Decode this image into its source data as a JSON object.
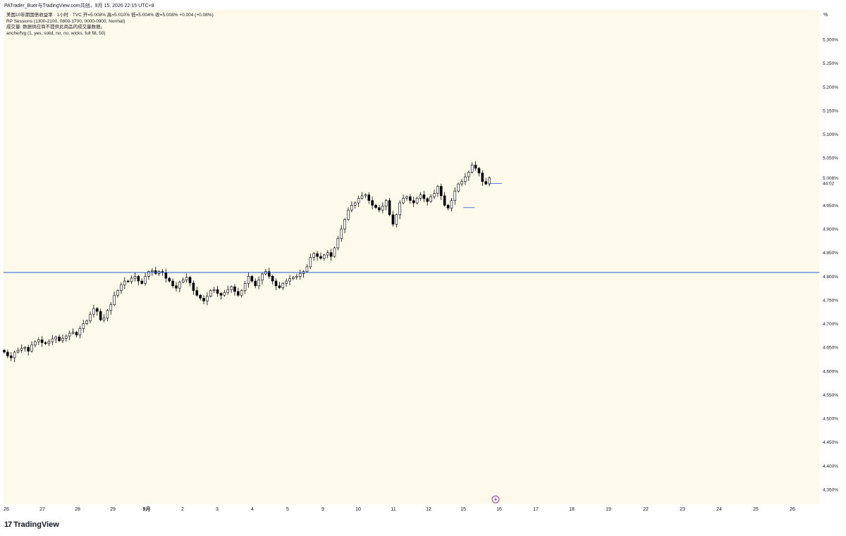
{
  "header": {
    "text": "PATrader_Buer与TradingView.com共创，9月 15, 2026 22:15 UTC+8"
  },
  "legend": {
    "line1": "美国10年期国债收益率 · 1小时 · TVC  开=5.008%  高=5.010%  低=5.004%  收=5.008%  +0.004 (+0.08%)",
    "line2": "RP Sessions (1300-2100, 0800-1700, 0000-0900, Normal)",
    "line3": "成交量: 数据供应商不提供此商品的成交量数据。",
    "line4": "anche/fvg (1, yes, solid, no, no, wicks, full fill, 50)"
  },
  "axis_unit": "%",
  "current_price": {
    "label": "5.008%",
    "countdown": "44:02",
    "value": 5.008
  },
  "footer": {
    "brand": "TradingView",
    "logo_mark": "17"
  },
  "colors": {
    "background": "#fefaeb",
    "candle_up": "#ffffff",
    "candle_down": "#000000",
    "hline": "#2a5bd7",
    "volume_up": "#089981",
    "lightning": "#9c27b0"
  },
  "chart_data": {
    "type": "candlestick",
    "title": "美国10年期国债收益率 · 1小时 · TVC",
    "ylim": [
      4.32,
      5.36
    ],
    "y_ticks": [
      "5.300%",
      "5.250%",
      "5.200%",
      "5.150%",
      "5.100%",
      "5.050%",
      "5.008%",
      "4.950%",
      "4.900%",
      "4.850%",
      "4.800%",
      "4.750%",
      "4.700%",
      "4.650%",
      "4.600%",
      "4.550%",
      "4.500%",
      "4.450%",
      "4.400%",
      "4.350%"
    ],
    "y_tick_values": [
      5.3,
      5.25,
      5.2,
      5.15,
      5.1,
      5.05,
      5.008,
      4.95,
      4.9,
      4.85,
      4.8,
      4.75,
      4.7,
      4.65,
      4.6,
      4.55,
      4.5,
      4.45,
      4.4,
      4.35
    ],
    "x_labels": [
      "26",
      "27",
      "28",
      "29",
      "9月",
      "2",
      "3",
      "4",
      "5",
      "9",
      "10",
      "11",
      "12",
      "15",
      "16",
      "17",
      "18",
      "19",
      "22",
      "23",
      "24",
      "25",
      "26"
    ],
    "horizontal_line": 4.808,
    "small_line": 4.945,
    "series": [
      {
        "name": "close",
        "values": [
          4.64,
          4.632,
          4.628,
          4.64,
          4.644,
          4.648,
          4.65,
          4.642,
          4.655,
          4.662,
          4.666,
          4.66,
          4.658,
          4.662,
          4.668,
          4.672,
          4.664,
          4.669,
          4.674,
          4.68,
          4.682,
          4.676,
          4.69,
          4.7,
          4.706,
          4.72,
          4.732,
          4.726,
          4.708,
          4.712,
          4.728,
          4.74,
          4.76,
          4.77,
          4.782,
          4.79,
          4.789,
          4.796,
          4.8,
          4.79,
          4.785,
          4.8,
          4.81,
          4.812,
          4.806,
          4.81,
          4.808,
          4.796,
          4.79,
          4.78,
          4.775,
          4.788,
          4.792,
          4.798,
          4.786,
          4.77,
          4.76,
          4.754,
          4.748,
          4.758,
          4.77,
          4.772,
          4.764,
          4.76,
          4.766,
          4.772,
          4.778,
          4.768,
          4.76,
          4.77,
          4.785,
          4.8,
          4.79,
          4.78,
          4.792,
          4.805,
          4.81,
          4.8,
          4.79,
          4.78,
          4.776,
          4.785,
          4.79,
          4.795,
          4.798,
          4.8,
          4.806,
          4.81,
          4.82,
          4.84,
          4.848,
          4.842,
          4.838,
          4.845,
          4.85,
          4.842,
          4.86,
          4.88,
          4.9,
          4.92,
          4.94,
          4.95,
          4.955,
          4.965,
          4.97,
          4.972,
          4.96,
          4.95,
          4.945,
          4.94,
          4.948,
          4.96,
          4.93,
          4.91,
          4.93,
          4.955,
          4.965,
          4.968,
          4.96,
          4.955,
          4.965,
          4.972,
          4.964,
          4.958,
          4.968,
          4.975,
          4.99,
          4.97,
          4.95,
          4.944,
          4.96,
          4.98,
          4.995,
          5.0,
          5.01,
          5.02,
          5.035,
          5.028,
          5.018,
          5.0,
          4.995,
          5.008
        ]
      }
    ]
  }
}
